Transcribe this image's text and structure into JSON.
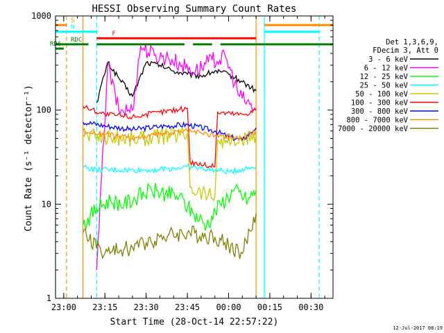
{
  "chart_data": {
    "type": "line",
    "title": "HESSI Observing Summary Count Rates",
    "xlabel": "Start Time (28-Oct-14 22:57:22)",
    "ylabel": "Count Rate (s⁻¹ detector⁻¹)",
    "yscale": "log",
    "ylim": [
      1,
      1000
    ],
    "xlim": [
      "22:57",
      "00:38"
    ],
    "x_ticks": [
      "23:00",
      "23:15",
      "23:30",
      "23:45",
      "00:00",
      "00:15",
      "00:30"
    ],
    "y_ticks": [
      "1",
      "10",
      "100",
      "1000"
    ],
    "timestamp": "12-Jul-2017 08:19",
    "legend": {
      "placement": "right",
      "header": [
        "Det 1,3,6,9,",
        "FDecim 3, Att 0"
      ]
    },
    "series": [
      {
        "name": "3 - 6 keV",
        "color": "#000000",
        "x": [
          "23:12",
          "23:16",
          "23:20",
          "23:25",
          "23:30",
          "23:35",
          "23:40",
          "23:45",
          "23:50",
          "23:55",
          "00:00",
          "00:05",
          "00:10"
        ],
        "y": [
          120,
          320,
          220,
          140,
          320,
          300,
          260,
          240,
          230,
          260,
          240,
          200,
          160
        ]
      },
      {
        "name": "6 - 12 keV",
        "color": "#ff00ff",
        "x": [
          "23:12",
          "23:16",
          "23:20",
          "23:25",
          "23:28",
          "23:33",
          "23:38",
          "23:43",
          "23:48",
          "23:54",
          "23:59",
          "00:04",
          "00:10"
        ],
        "y": [
          2,
          300,
          100,
          100,
          480,
          380,
          360,
          300,
          260,
          340,
          360,
          140,
          100
        ]
      },
      {
        "name": "12 - 25 keV",
        "color": "#00ff00",
        "x": [
          "23:07",
          "23:12",
          "23:17",
          "23:22",
          "23:27",
          "23:32",
          "23:37",
          "23:42",
          "23:47",
          "23:52",
          "23:57",
          "00:02",
          "00:07",
          "00:10"
        ],
        "y": [
          6,
          9,
          11,
          10,
          12,
          14,
          13,
          12,
          8,
          6,
          10,
          14,
          11,
          14
        ]
      },
      {
        "name": "25 - 50 keV",
        "color": "#00ffff",
        "x": [
          "23:07",
          "23:12",
          "23:20",
          "23:30",
          "23:40",
          "23:45",
          "23:50",
          "23:55",
          "00:00",
          "00:10"
        ],
        "y": [
          25,
          23,
          23,
          23,
          24,
          25,
          24,
          23,
          22,
          25
        ]
      },
      {
        "name": "50 - 100 keV",
        "color": "#c8c800",
        "x": [
          "23:07",
          "23:15",
          "23:25",
          "23:35",
          "23:45",
          "23:46",
          "23:55",
          "23:56",
          "00:05",
          "00:10"
        ],
        "y": [
          55,
          52,
          50,
          52,
          57,
          15,
          12,
          48,
          46,
          55
        ]
      },
      {
        "name": "100 - 300 keV",
        "color": "#ff0000",
        "x": [
          "23:07",
          "23:15",
          "23:25",
          "23:35",
          "23:45",
          "23:46",
          "23:55",
          "23:56",
          "00:05",
          "00:10"
        ],
        "y": [
          110,
          90,
          85,
          95,
          105,
          28,
          25,
          95,
          90,
          100
        ]
      },
      {
        "name": "300 - 800 keV",
        "color": "#0000ff",
        "x": [
          "23:07",
          "23:15",
          "23:25",
          "23:35",
          "23:45",
          "23:55",
          "00:00",
          "00:05",
          "00:10"
        ],
        "y": [
          75,
          68,
          62,
          67,
          70,
          60,
          52,
          48,
          65
        ]
      },
      {
        "name": "800 - 7000 keV",
        "color": "#ff8c00",
        "x": [
          "23:07",
          "23:15",
          "23:25",
          "23:35",
          "23:45",
          "23:55",
          "00:05",
          "00:10"
        ],
        "y": [
          60,
          55,
          50,
          55,
          60,
          54,
          50,
          60
        ]
      },
      {
        "name": "7000 - 20000 keV",
        "color": "#808000",
        "x": [
          "23:07",
          "23:15",
          "23:25",
          "23:35",
          "23:45",
          "23:55",
          "00:05",
          "00:10"
        ],
        "y": [
          5,
          3,
          3.5,
          4.5,
          5,
          4.5,
          3,
          8
        ]
      }
    ],
    "state_bars": [
      {
        "label": "S",
        "color": "#ff8c00",
        "level": 800,
        "segments": [
          [
            "22:57",
            "23:01"
          ],
          [
            "00:13",
            "00:38"
          ]
        ]
      },
      {
        "label": "N",
        "color": "#00ffff",
        "level": 680,
        "segments": [
          [
            "22:57",
            "23:12"
          ],
          [
            "00:13",
            "00:33"
          ]
        ]
      },
      {
        "label": "F",
        "color": "#ff0000",
        "level": 580,
        "segments": [
          [
            "23:12",
            "00:10"
          ]
        ]
      },
      {
        "label": "RDC",
        "color": "#008000",
        "level": 500,
        "segments": [
          [
            "22:57",
            "23:09"
          ],
          [
            "23:12",
            "23:44"
          ],
          [
            "23:47",
            "23:54"
          ],
          [
            "23:57",
            "00:38"
          ]
        ]
      },
      {
        "label": "RD6",
        "color": "#008000",
        "level": 450,
        "segments": [
          [
            "22:57",
            "23:00"
          ]
        ]
      }
    ],
    "vertical_markers": [
      {
        "time": "22:57",
        "color": "#00ffff",
        "style": "solid"
      },
      {
        "time": "23:01",
        "color": "#ff8c00",
        "style": "dashed"
      },
      {
        "time": "23:07",
        "color": "#ff8c00",
        "style": "solid"
      },
      {
        "time": "23:12",
        "color": "#00ffff",
        "style": "dashed"
      },
      {
        "time": "00:10",
        "color": "#ff8c00",
        "style": "solid"
      },
      {
        "time": "00:13",
        "color": "#00ffff",
        "style": "solid"
      },
      {
        "time": "00:33",
        "color": "#00ffff",
        "style": "dashed"
      }
    ],
    "grid": false
  }
}
